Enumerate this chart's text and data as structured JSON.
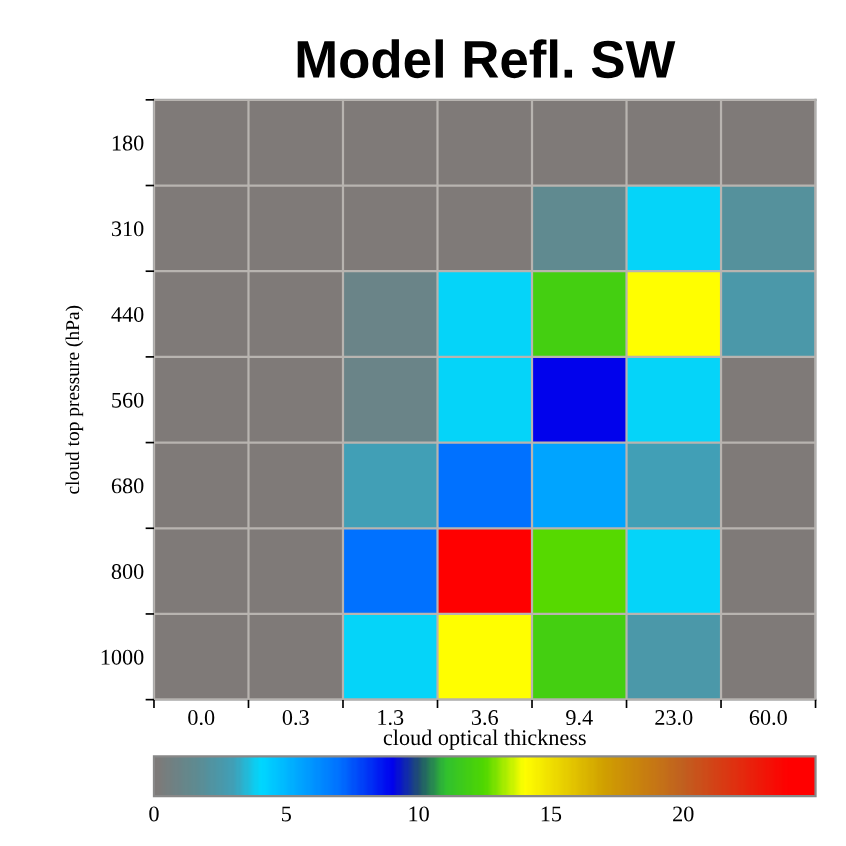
{
  "chart_data": {
    "type": "heatmap",
    "title": "Model Refl. SW",
    "xlabel": "cloud optical thickness",
    "ylabel": "cloud top pressure (hPa)",
    "cells": [
      [
        0,
        0,
        0,
        0,
        0,
        0,
        0
      ],
      [
        0,
        0,
        0,
        0,
        1.5,
        4,
        2
      ],
      [
        0,
        0,
        1,
        4,
        12,
        14,
        2.5
      ],
      [
        0,
        0,
        1,
        4,
        9,
        4,
        0
      ],
      [
        0,
        0,
        3,
        7,
        5.5,
        3,
        0
      ],
      [
        0,
        0,
        7,
        24,
        12.5,
        4,
        0
      ],
      [
        0,
        0,
        4,
        14,
        12,
        2.5,
        0
      ]
    ],
    "categories": [
      "0.0",
      "0.3",
      "1.3",
      "3.6",
      "9.4",
      "23.0",
      "60.0"
    ],
    "y_categories": [
      "180",
      "310",
      "440",
      "560",
      "680",
      "800",
      "1000"
    ],
    "clim": [
      0,
      25
    ],
    "cticks": [
      0,
      5,
      10,
      15,
      20
    ],
    "grid": true
  }
}
